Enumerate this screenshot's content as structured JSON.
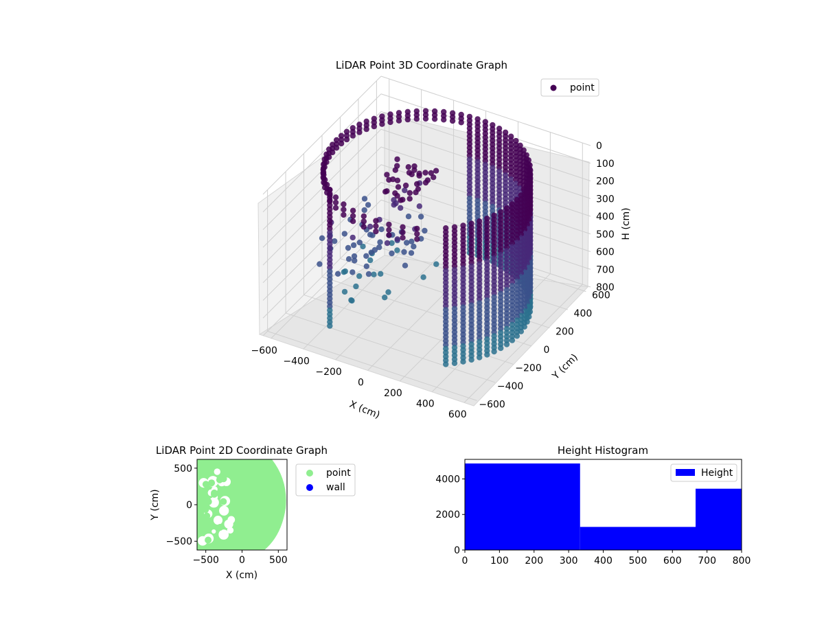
{
  "chart_data": [
    {
      "type": "scatter",
      "title": "LiDAR Point 3D Coordinate Graph",
      "projection": "3d",
      "xlabel": "X (cm)",
      "ylabel": "Y (cm)",
      "zlabel": "H (cm)",
      "xlim": [
        -650,
        650
      ],
      "ylim": [
        -650,
        650
      ],
      "zlim": [
        800,
        0
      ],
      "x_ticks": [
        "−600",
        "−400",
        "−200",
        "0",
        "200",
        "400",
        "600"
      ],
      "y_ticks": [
        "−600",
        "−400",
        "−200",
        "0",
        "200",
        "400",
        "600"
      ],
      "z_ticks": [
        "0",
        "100",
        "200",
        "300",
        "400",
        "500",
        "600",
        "700",
        "800"
      ],
      "legend": [
        "point"
      ],
      "legend_placement": "top-right",
      "colormap": [
        "#440154",
        "#482878",
        "#3b518b",
        "#2c718e"
      ],
      "marker_color": "#440154",
      "grid": true,
      "series": [
        {
          "name": "point",
          "description_points": [
            {
              "x": -600,
              "y": 400,
              "h": 700
            },
            {
              "x": 560,
              "y": 100,
              "h": 300
            }
          ]
        }
      ]
    },
    {
      "type": "scatter",
      "title": "LiDAR Point 2D Coordinate Graph",
      "xlabel": "X (cm)",
      "ylabel": "Y (cm)",
      "xlim": [
        -620,
        620
      ],
      "ylim": [
        -620,
        620
      ],
      "x_ticks": [
        "−500",
        "0",
        "500"
      ],
      "y_ticks": [
        "−500",
        "0",
        "500"
      ],
      "legend": [
        "point",
        "wall"
      ],
      "legend_placement": "outside-right",
      "colors": {
        "point": "#90ee90",
        "wall": "#0000ff"
      },
      "grid": false
    },
    {
      "type": "bar",
      "title": "Height Histogram",
      "xlim": [
        0,
        800
      ],
      "ylim": [
        0,
        5100
      ],
      "x_ticks": [
        "0",
        "100",
        "200",
        "300",
        "400",
        "500",
        "600",
        "700",
        "800"
      ],
      "y_ticks": [
        "0",
        "2000",
        "4000"
      ],
      "legend": [
        "Height"
      ],
      "legend_placement": "top-right",
      "color": "#0000ff",
      "bins": [
        {
          "from": 0,
          "to": 333,
          "count": 4870
        },
        {
          "from": 333,
          "to": 667,
          "count": 1300
        },
        {
          "from": 667,
          "to": 800,
          "count": 3450
        }
      ]
    }
  ]
}
